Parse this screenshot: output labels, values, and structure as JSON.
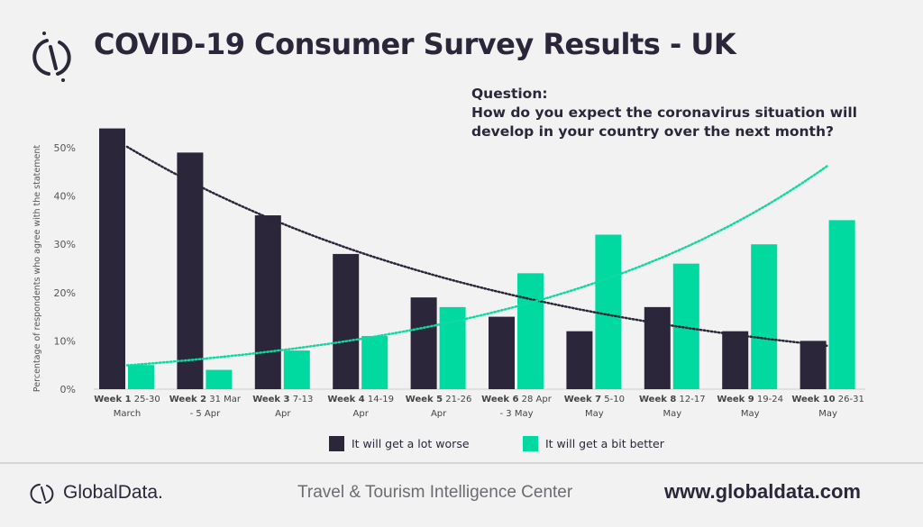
{
  "header": {
    "title": "COVID-19 Consumer Survey Results - UK",
    "question_label": "Question:",
    "question_line1": "How do you expect the coronavirus situation will",
    "question_line2": "develop in your country over the next month?"
  },
  "footer": {
    "brand": "GlobalData.",
    "center": "Travel & Tourism Intelligence Center",
    "url": "www.globaldata.com"
  },
  "colors": {
    "dark": "#2b2639",
    "green": "#00d9a0",
    "background": "#f2f2f2"
  },
  "chart_data": {
    "type": "bar",
    "title": "",
    "ylabel": "Percentage of respondents who agree with the statement",
    "ylim": [
      0,
      50
    ],
    "yticks": [
      "0%",
      "10%",
      "20%",
      "30%",
      "40%",
      "50%"
    ],
    "ytick_values": [
      0,
      10,
      20,
      30,
      40,
      50
    ],
    "legend_position": "bottom",
    "trendlines": "exponential, dotted, per series",
    "categories": [
      {
        "week": "Week 1",
        "line1": "25-30",
        "line2": "March"
      },
      {
        "week": "Week 2",
        "line1": "31 Mar",
        "line2": "- 5 Apr"
      },
      {
        "week": "Week 3",
        "line1": "7-13",
        "line2": "Apr"
      },
      {
        "week": "Week 4",
        "line1": "14-19",
        "line2": "Apr"
      },
      {
        "week": "Week 5",
        "line1": "21-26",
        "line2": "Apr"
      },
      {
        "week": "Week 6",
        "line1": "28 Apr",
        "line2": "- 3 May"
      },
      {
        "week": "Week 7",
        "line1": "5-10",
        "line2": "May"
      },
      {
        "week": "Week 8",
        "line1": "12-17",
        "line2": "May"
      },
      {
        "week": "Week 9",
        "line1": "19-24",
        "line2": "May"
      },
      {
        "week": "Week 10",
        "line1": "26-31",
        "line2": "May"
      }
    ],
    "series": [
      {
        "name": "It will get a lot worse",
        "color": "#2b2639",
        "values": [
          54,
          49,
          36,
          28,
          19,
          15,
          12,
          17,
          12,
          10
        ]
      },
      {
        "name": "It will get a bit better",
        "color": "#00d9a0",
        "values": [
          5,
          4,
          8,
          11,
          17,
          24,
          32,
          26,
          30,
          35
        ]
      }
    ]
  }
}
